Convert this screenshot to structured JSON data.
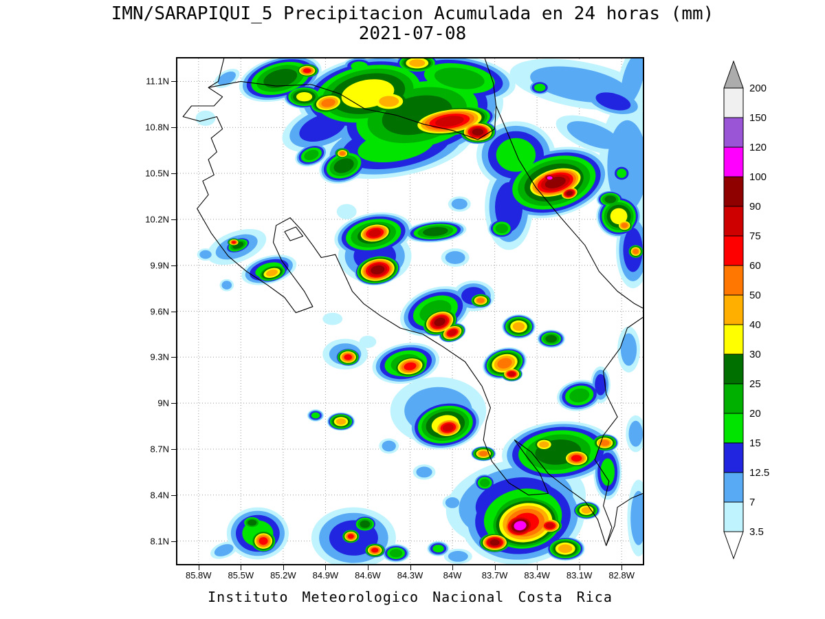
{
  "header": {
    "title": "IMN/SARAPIQUI_5 Precipitacion Acumulada en 24 horas (mm)",
    "date": "2021-07-08"
  },
  "footer": {
    "text": "Instituto Meteorologico Nacional Costa Rica"
  },
  "chart_data": {
    "type": "heatmap",
    "title": "IMN/SARAPIQUI_5 Precipitacion Acumulada en 24 horas (mm)",
    "date": "2021-07-08",
    "variable": "Precipitacion Acumulada en 24 horas",
    "units": "mm",
    "region": "Costa Rica",
    "grid": true,
    "legend_position": "right",
    "xlim": [
      -85.95,
      -82.65
    ],
    "ylim": [
      7.95,
      11.25
    ],
    "x_ticks": {
      "values": [
        -85.8,
        -85.5,
        -85.2,
        -84.9,
        -84.6,
        -84.3,
        -84.0,
        -83.7,
        -83.4,
        -83.1,
        -82.8
      ],
      "labels": [
        "85.8W",
        "85.5W",
        "85.2W",
        "84.9W",
        "84.6W",
        "84.3W",
        "84W",
        "83.7W",
        "83.4W",
        "83.1W",
        "82.8W"
      ]
    },
    "y_ticks": {
      "values": [
        11.1,
        10.8,
        10.5,
        10.2,
        9.9,
        9.6,
        9.3,
        9.0,
        8.7,
        8.4,
        8.1
      ],
      "labels": [
        "11.1N",
        "10.8N",
        "10.5N",
        "10.2N",
        "9.9N",
        "9.6N",
        "9.3N",
        "9N",
        "8.7N",
        "8.4N",
        "8.1N"
      ]
    },
    "colorbar": {
      "levels": [
        3.5,
        7,
        12.5,
        15,
        20,
        25,
        30,
        40,
        50,
        60,
        75,
        90,
        100,
        120,
        150,
        200
      ],
      "labels": [
        "3.5",
        "7",
        "12.5",
        "15",
        "20",
        "25",
        "30",
        "40",
        "50",
        "60",
        "75",
        "90",
        "100",
        "120",
        "150",
        "200"
      ],
      "band_colors": [
        "#BFF3FE",
        "#58AAF5",
        "#2125E0",
        "#00E400",
        "#00B000",
        "#007000",
        "#FFFF00",
        "#FFAF00",
        "#FF7700",
        "#FF0000",
        "#CE0000",
        "#8F0000",
        "#FF00FF",
        "#9A55D6",
        "#F0F0F0"
      ],
      "under_color": "#FFFFFF",
      "over_color": "#ACACAC"
    },
    "precip_cells": [
      [
        -85.22,
        11.12,
        0.3,
        0.14,
        -15,
        25
      ],
      [
        -85.03,
        11.17,
        0.09,
        0.05,
        0,
        60
      ],
      [
        -84.88,
        10.96,
        0.15,
        0.08,
        -10,
        50
      ],
      [
        -84.6,
        11.02,
        0.5,
        0.24,
        -10,
        30
      ],
      [
        -84.25,
        10.88,
        0.62,
        0.3,
        -12,
        25
      ],
      [
        -84.02,
        10.84,
        0.34,
        0.11,
        -8,
        75
      ],
      [
        -83.82,
        10.77,
        0.14,
        0.08,
        0,
        90
      ],
      [
        -84.45,
        10.97,
        0.2,
        0.1,
        0,
        40
      ],
      [
        -83.95,
        11.12,
        0.4,
        0.15,
        8,
        20
      ],
      [
        -84.4,
        10.68,
        0.55,
        0.2,
        -10,
        15
      ],
      [
        -84.92,
        10.8,
        0.3,
        0.14,
        -20,
        12.5
      ],
      [
        -85.05,
        11.0,
        0.15,
        0.08,
        0,
        30
      ],
      [
        -84.25,
        11.22,
        0.16,
        0.07,
        0,
        40
      ],
      [
        -84.66,
        11.2,
        0.12,
        0.06,
        0,
        15
      ],
      [
        -84.77,
        10.55,
        0.18,
        0.11,
        -20,
        25
      ],
      [
        -84.78,
        10.63,
        0.06,
        0.04,
        0,
        50
      ],
      [
        -85.0,
        10.62,
        0.12,
        0.07,
        -20,
        20
      ],
      [
        -85.6,
        11.12,
        0.1,
        0.05,
        -30,
        7
      ],
      [
        -85.75,
        10.86,
        0.07,
        0.05,
        0,
        3.5
      ],
      [
        -83.55,
        10.62,
        0.28,
        0.22,
        0,
        15
      ],
      [
        -83.28,
        10.44,
        0.4,
        0.22,
        -15,
        30
      ],
      [
        -83.27,
        10.44,
        0.26,
        0.12,
        -15,
        90
      ],
      [
        -83.31,
        10.47,
        0.07,
        0.04,
        0,
        100
      ],
      [
        -83.17,
        10.37,
        0.08,
        0.05,
        -15,
        90
      ],
      [
        -83.1,
        11.08,
        0.5,
        0.15,
        10,
        7
      ],
      [
        -82.86,
        10.97,
        0.22,
        0.09,
        15,
        12.5
      ],
      [
        -83.38,
        11.06,
        0.08,
        0.05,
        0,
        15
      ],
      [
        -82.76,
        10.55,
        0.2,
        0.42,
        0,
        7
      ],
      [
        -82.8,
        10.5,
        0.07,
        0.06,
        0,
        15
      ],
      [
        -83.0,
        10.75,
        0.28,
        0.1,
        20,
        7
      ],
      [
        -83.6,
        10.28,
        0.17,
        0.28,
        0,
        12.5
      ],
      [
        -83.65,
        10.14,
        0.1,
        0.07,
        0,
        20
      ],
      [
        -82.72,
        11.12,
        0.1,
        0.25,
        15,
        7
      ],
      [
        -82.82,
        10.22,
        0.16,
        0.14,
        0,
        30
      ],
      [
        -82.78,
        10.16,
        0.07,
        0.05,
        0,
        50
      ],
      [
        -82.88,
        10.33,
        0.1,
        0.06,
        0,
        25
      ],
      [
        -82.72,
        10.0,
        0.12,
        0.25,
        0,
        12.5
      ],
      [
        -82.7,
        9.99,
        0.06,
        0.05,
        0,
        50
      ],
      [
        -82.75,
        9.35,
        0.08,
        0.15,
        0,
        7
      ],
      [
        -85.53,
        10.02,
        0.22,
        0.1,
        -20,
        7
      ],
      [
        -85.52,
        10.03,
        0.1,
        0.05,
        -20,
        25
      ],
      [
        -85.55,
        10.05,
        0.05,
        0.03,
        0,
        60
      ],
      [
        -85.28,
        9.85,
        0.12,
        0.06,
        -15,
        40
      ],
      [
        -85.3,
        9.87,
        0.2,
        0.09,
        -15,
        15
      ],
      [
        -85.75,
        9.97,
        0.06,
        0.04,
        0,
        7
      ],
      [
        -84.56,
        10.1,
        0.28,
        0.14,
        -10,
        25
      ],
      [
        -84.55,
        10.11,
        0.15,
        0.08,
        -10,
        75
      ],
      [
        -84.53,
        9.87,
        0.17,
        0.1,
        -10,
        90
      ],
      [
        -84.55,
        9.96,
        0.26,
        0.18,
        0,
        12.5
      ],
      [
        -84.12,
        10.12,
        0.22,
        0.07,
        -5,
        25
      ],
      [
        -83.98,
        9.95,
        0.1,
        0.06,
        0,
        7
      ],
      [
        -83.95,
        10.3,
        0.08,
        0.05,
        0,
        7
      ],
      [
        -83.8,
        9.67,
        0.08,
        0.05,
        0,
        50
      ],
      [
        -83.85,
        9.7,
        0.15,
        0.1,
        0,
        12.5
      ],
      [
        -84.09,
        9.53,
        0.14,
        0.09,
        -20,
        90
      ],
      [
        -84.0,
        9.46,
        0.1,
        0.06,
        -20,
        75
      ],
      [
        -84.12,
        9.6,
        0.26,
        0.15,
        -20,
        20
      ],
      [
        -83.53,
        9.5,
        0.12,
        0.08,
        0,
        40
      ],
      [
        -83.3,
        9.42,
        0.1,
        0.06,
        0,
        25
      ],
      [
        -84.74,
        9.3,
        0.09,
        0.06,
        0,
        60
      ],
      [
        -84.76,
        9.32,
        0.16,
        0.1,
        0,
        7
      ],
      [
        -84.3,
        9.24,
        0.14,
        0.08,
        -10,
        60
      ],
      [
        -84.33,
        9.26,
        0.24,
        0.13,
        -10,
        20
      ],
      [
        -83.63,
        9.26,
        0.16,
        0.1,
        -15,
        50
      ],
      [
        -83.58,
        9.19,
        0.08,
        0.05,
        0,
        75
      ],
      [
        -83.1,
        9.05,
        0.16,
        0.1,
        -10,
        20
      ],
      [
        -82.95,
        9.12,
        0.07,
        0.12,
        0,
        12.5
      ],
      [
        -84.79,
        8.88,
        0.1,
        0.06,
        0,
        40
      ],
      [
        -84.97,
        8.92,
        0.06,
        0.04,
        0,
        15
      ],
      [
        -84.05,
        8.86,
        0.26,
        0.16,
        -10,
        30
      ],
      [
        -84.03,
        8.84,
        0.13,
        0.08,
        -10,
        75
      ],
      [
        -84.1,
        8.95,
        0.34,
        0.22,
        0,
        7
      ],
      [
        -83.78,
        8.67,
        0.09,
        0.05,
        0,
        50
      ],
      [
        -84.45,
        8.72,
        0.07,
        0.05,
        0,
        7
      ],
      [
        -84.2,
        8.55,
        0.08,
        0.05,
        0,
        7
      ],
      [
        -83.25,
        8.68,
        0.4,
        0.2,
        -5,
        25
      ],
      [
        -83.12,
        8.64,
        0.12,
        0.07,
        0,
        60
      ],
      [
        -83.35,
        8.73,
        0.1,
        0.06,
        0,
        40
      ],
      [
        -82.92,
        8.74,
        0.1,
        0.06,
        0,
        50
      ],
      [
        -82.9,
        8.55,
        0.1,
        0.18,
        0,
        15
      ],
      [
        -83.05,
        8.3,
        0.1,
        0.06,
        0,
        40
      ],
      [
        -83.77,
        8.48,
        0.08,
        0.06,
        0,
        20
      ],
      [
        -83.5,
        8.25,
        0.44,
        0.3,
        -10,
        20
      ],
      [
        -83.48,
        8.22,
        0.3,
        0.2,
        -10,
        60
      ],
      [
        -83.52,
        8.2,
        0.16,
        0.11,
        -10,
        100
      ],
      [
        -83.7,
        8.09,
        0.12,
        0.07,
        0,
        90
      ],
      [
        -83.31,
        8.2,
        0.1,
        0.06,
        0,
        75
      ],
      [
        -83.55,
        8.35,
        0.5,
        0.28,
        -10,
        12.5
      ],
      [
        -83.2,
        8.05,
        0.14,
        0.08,
        0,
        40
      ],
      [
        -82.68,
        8.25,
        0.08,
        0.25,
        0,
        7
      ],
      [
        -85.38,
        8.15,
        0.22,
        0.17,
        0,
        15
      ],
      [
        -85.34,
        8.1,
        0.1,
        0.08,
        0,
        60
      ],
      [
        -85.42,
        8.22,
        0.08,
        0.05,
        0,
        25
      ],
      [
        -85.62,
        8.04,
        0.1,
        0.05,
        -20,
        7
      ],
      [
        -84.7,
        8.12,
        0.3,
        0.2,
        0,
        12.5
      ],
      [
        -84.72,
        8.13,
        0.07,
        0.05,
        0,
        60
      ],
      [
        -84.55,
        8.04,
        0.08,
        0.05,
        0,
        60
      ],
      [
        -84.62,
        8.21,
        0.09,
        0.06,
        0,
        25
      ],
      [
        -84.4,
        8.02,
        0.1,
        0.06,
        0,
        20
      ],
      [
        -84.1,
        8.05,
        0.08,
        0.05,
        0,
        15
      ],
      [
        -83.96,
        8.0,
        0.1,
        0.05,
        0,
        7
      ],
      [
        -84.0,
        8.35,
        0.07,
        0.05,
        0,
        7
      ],
      [
        -84.85,
        9.55,
        0.07,
        0.04,
        0,
        3.5
      ],
      [
        -84.6,
        9.4,
        0.06,
        0.04,
        0,
        3.5
      ],
      [
        -84.75,
        10.25,
        0.07,
        0.05,
        0,
        3.5
      ],
      [
        -82.7,
        8.8,
        0.07,
        0.12,
        0,
        7
      ],
      [
        -85.6,
        9.77,
        0.05,
        0.04,
        0,
        7
      ]
    ],
    "coastlines": [
      [
        [
          -85.62,
          11.25
        ],
        [
          -85.66,
          11.1
        ],
        [
          -85.73,
          11.06
        ],
        [
          -85.63,
          11.0
        ],
        [
          -85.69,
          10.94
        ],
        [
          -85.85,
          10.94
        ],
        [
          -85.91,
          10.87
        ],
        [
          -85.79,
          10.84
        ],
        [
          -85.67,
          10.87
        ],
        [
          -85.63,
          10.79
        ],
        [
          -85.71,
          10.73
        ],
        [
          -85.67,
          10.64
        ],
        [
          -85.73,
          10.59
        ],
        [
          -85.69,
          10.49
        ],
        [
          -85.77,
          10.45
        ],
        [
          -85.73,
          10.36
        ],
        [
          -85.81,
          10.27
        ],
        [
          -85.71,
          10.11
        ],
        [
          -85.59,
          9.96
        ],
        [
          -85.46,
          9.86
        ],
        [
          -85.31,
          9.77
        ],
        [
          -85.19,
          9.69
        ],
        [
          -85.11,
          9.59
        ],
        [
          -84.99,
          9.63
        ],
        [
          -85.05,
          9.73
        ],
        [
          -85.13,
          9.83
        ],
        [
          -85.21,
          9.93
        ],
        [
          -85.27,
          10.05
        ],
        [
          -85.25,
          10.16
        ],
        [
          -85.15,
          10.21
        ],
        [
          -85.07,
          10.13
        ],
        [
          -84.99,
          10.03
        ],
        [
          -84.93,
          9.95
        ],
        [
          -84.83,
          9.97
        ],
        [
          -84.79,
          9.89
        ],
        [
          -84.71,
          9.73
        ],
        [
          -84.63,
          9.65
        ],
        [
          -84.51,
          9.57
        ],
        [
          -84.37,
          9.49
        ],
        [
          -84.21,
          9.45
        ],
        [
          -84.07,
          9.37
        ],
        [
          -83.91,
          9.27
        ],
        [
          -83.79,
          9.11
        ],
        [
          -83.73,
          8.97
        ],
        [
          -83.76,
          8.88
        ],
        [
          -83.78,
          8.76
        ],
        [
          -83.72,
          8.62
        ],
        [
          -83.6,
          8.48
        ],
        [
          -83.46,
          8.4
        ],
        [
          -83.32,
          8.41
        ],
        [
          -83.38,
          8.54
        ],
        [
          -83.48,
          8.66
        ],
        [
          -83.56,
          8.76
        ],
        [
          -83.44,
          8.68
        ],
        [
          -83.32,
          8.54
        ],
        [
          -83.18,
          8.44
        ],
        [
          -83.06,
          8.36
        ],
        [
          -82.97,
          8.24
        ],
        [
          -82.91,
          8.07
        ],
        [
          -82.85,
          8.2
        ],
        [
          -82.83,
          8.32
        ],
        [
          -82.73,
          8.38
        ],
        [
          -82.65,
          8.41
        ]
      ],
      [
        [
          -83.77,
          11.25
        ],
        [
          -83.71,
          11.09
        ],
        [
          -83.69,
          10.94
        ],
        [
          -83.63,
          10.81
        ],
        [
          -83.53,
          10.59
        ],
        [
          -83.41,
          10.41
        ],
        [
          -83.23,
          10.21
        ],
        [
          -83.06,
          10.03
        ],
        [
          -82.96,
          9.86
        ],
        [
          -82.83,
          9.73
        ],
        [
          -82.71,
          9.65
        ],
        [
          -82.65,
          9.62
        ]
      ],
      [
        [
          -85.73,
          11.06
        ],
        [
          -85.5,
          11.1
        ],
        [
          -85.25,
          11.07
        ],
        [
          -85.0,
          11.08
        ],
        [
          -84.8,
          11.02
        ],
        [
          -84.62,
          10.92
        ],
        [
          -84.4,
          10.88
        ],
        [
          -84.2,
          10.82
        ],
        [
          -84.0,
          10.78
        ],
        [
          -83.82,
          10.72
        ],
        [
          -83.7,
          10.79
        ],
        [
          -83.69,
          10.94
        ]
      ],
      [
        [
          -82.65,
          9.56
        ],
        [
          -82.76,
          9.49
        ],
        [
          -82.81,
          9.36
        ],
        [
          -82.93,
          9.21
        ],
        [
          -82.91,
          9.06
        ],
        [
          -82.83,
          8.91
        ],
        [
          -82.93,
          8.79
        ],
        [
          -82.99,
          8.63
        ],
        [
          -82.89,
          8.49
        ],
        [
          -82.93,
          8.33
        ],
        [
          -82.87,
          8.19
        ],
        [
          -82.91,
          8.07
        ]
      ],
      [
        [
          -85.19,
          10.12
        ],
        [
          -85.11,
          10.15
        ],
        [
          -85.06,
          10.09
        ],
        [
          -85.15,
          10.06
        ],
        [
          -85.19,
          10.12
        ]
      ]
    ]
  }
}
